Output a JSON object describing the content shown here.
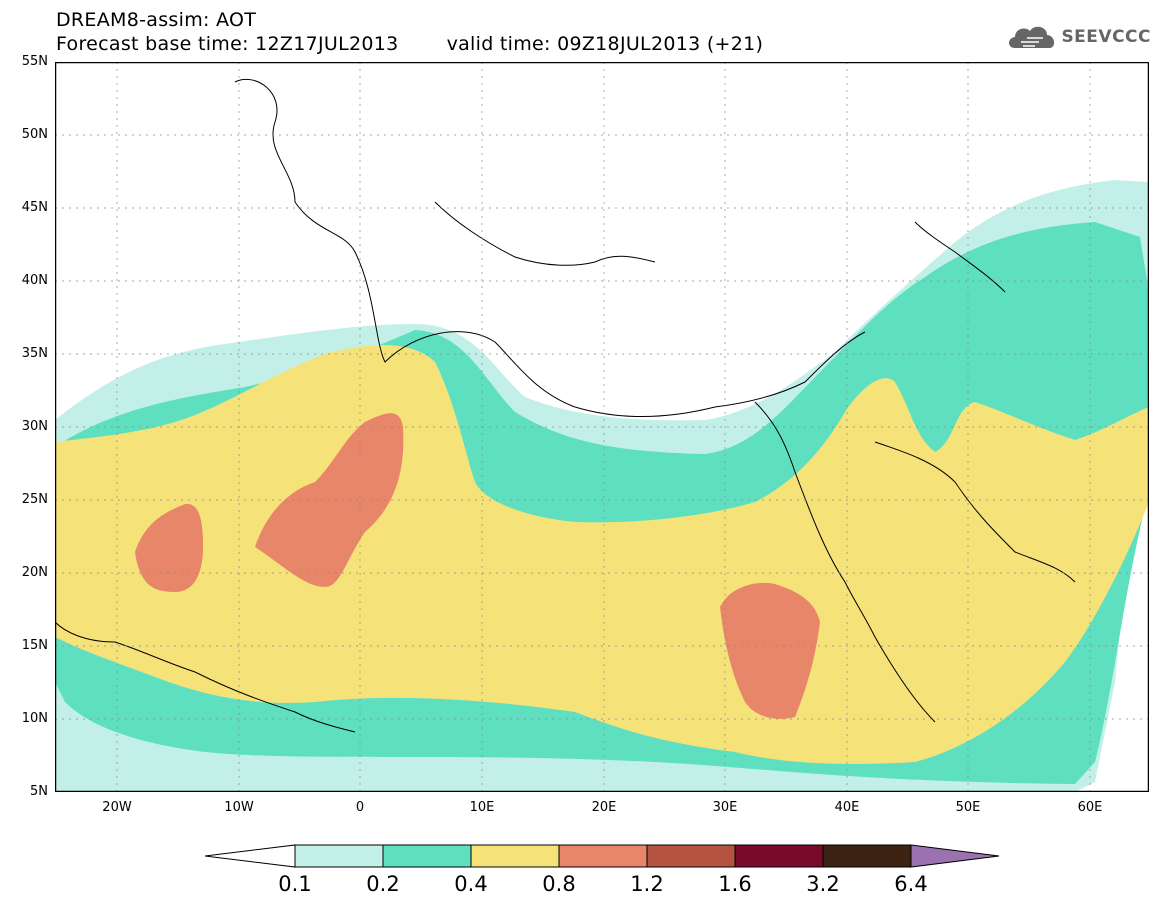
{
  "header": {
    "title_line1": "DREAM8-assim: AOT",
    "base_time": "Forecast base time: 12Z17JUL2013",
    "valid_time": "valid time: 09Z18JUL2013 (+21)"
  },
  "logo": {
    "text": "SEEVCCC",
    "icon": "cloud-icon"
  },
  "axes": {
    "lat_labels": [
      "55N",
      "50N",
      "45N",
      "40N",
      "35N",
      "30N",
      "25N",
      "20N",
      "15N",
      "10N",
      "5N"
    ],
    "lon_labels": [
      "20W",
      "10W",
      "0",
      "10E",
      "20E",
      "30E",
      "40E",
      "50E",
      "60E"
    ],
    "lat_range": [
      5,
      55
    ],
    "lon_range": [
      -25,
      65
    ]
  },
  "legend": {
    "levels": [
      "0.1",
      "0.2",
      "0.4",
      "0.8",
      "1.2",
      "1.6",
      "3.2",
      "6.4"
    ],
    "colors": {
      "under": "#ffffff",
      "c1": "#c2f0e8",
      "c2": "#5ee0c0",
      "c3": "#f5e37a",
      "c4": "#e8866a",
      "c5": "#b55340",
      "c6": "#7a0a2a",
      "c7": "#3d2412",
      "over": "#9b72b0"
    }
  }
}
